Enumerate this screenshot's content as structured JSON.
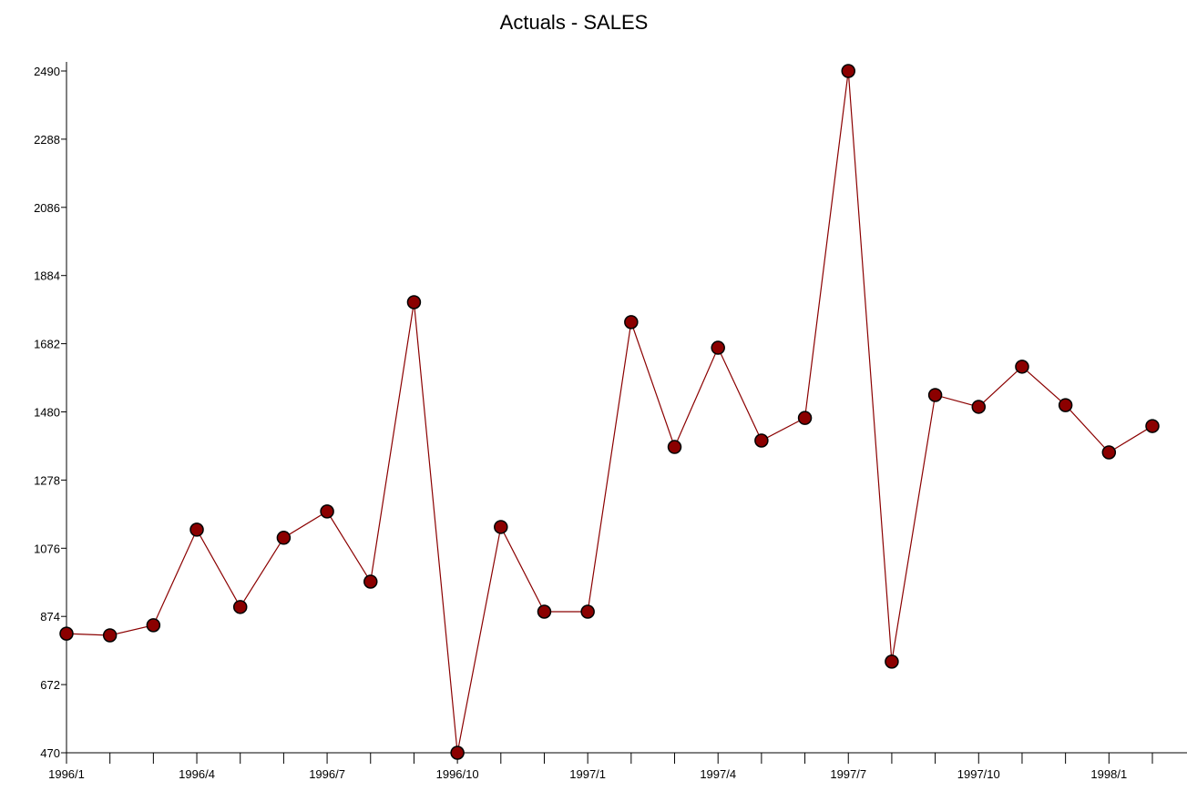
{
  "chart_data": {
    "type": "line",
    "title": "Actuals - SALES",
    "categories": [
      "1996/1",
      null,
      null,
      "1996/4",
      null,
      null,
      "1996/7",
      null,
      null,
      "1996/10",
      null,
      null,
      "1997/1",
      null,
      null,
      "1997/4",
      null,
      null,
      "1997/7",
      null,
      null,
      "1997/10",
      null,
      null,
      "1998/1",
      null
    ],
    "series": [
      {
        "name": "SALES",
        "color": "#8b0000",
        "values": [
          823,
          818,
          848,
          1131,
          902,
          1107,
          1185,
          977,
          1805,
          470,
          1139,
          888,
          888,
          1746,
          1376,
          1670,
          1395,
          1462,
          2490,
          740,
          1530,
          1495,
          1614,
          1500,
          1360,
          1438
        ]
      }
    ],
    "ylim": [
      470,
      2490
    ],
    "yticks": [
      470,
      672,
      874,
      1076,
      1278,
      1480,
      1682,
      1884,
      2086,
      2288,
      2490
    ]
  }
}
